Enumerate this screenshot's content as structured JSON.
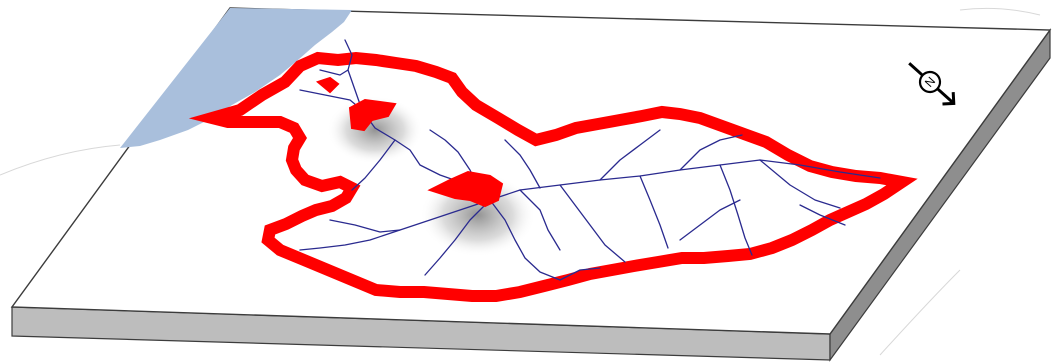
{
  "map": {
    "colors": {
      "background": "#ffffff",
      "plate_top": "#ffffff",
      "plate_front": "#bdbdbd",
      "plate_side": "#8e8e8e",
      "plate_edge": "#3c3c3c",
      "sea": "#a9bfdc",
      "basin_outline": "#ff0000",
      "urban_area": "#ff0000",
      "river": "#2a2a8f",
      "hill_shadow": "#7a7a7a",
      "north_arrow": "#000000"
    },
    "north_arrow": {
      "label": "N",
      "icon": "north-arrow-icon"
    }
  }
}
